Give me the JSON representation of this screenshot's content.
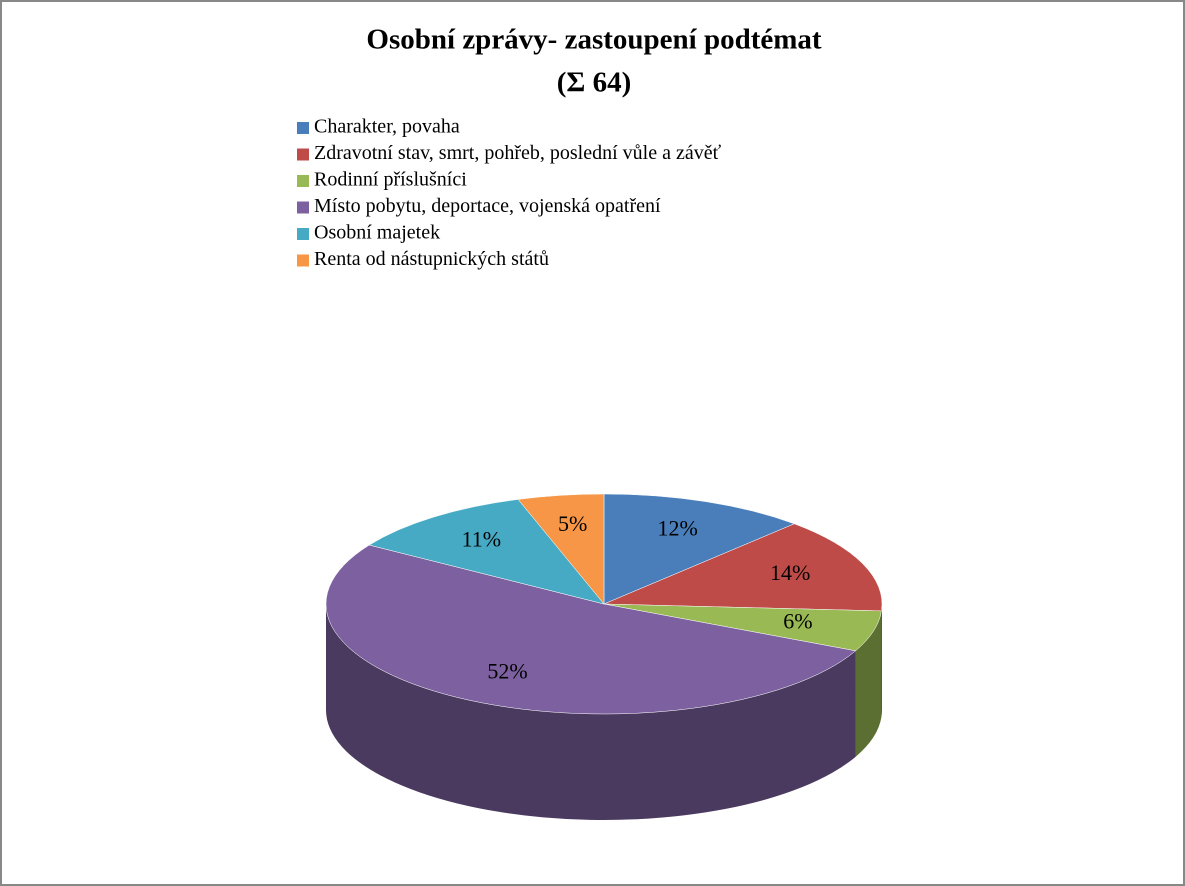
{
  "chart_data": {
    "type": "pie",
    "title": "Osobní zprávy- zastoupení podtémat",
    "subtitle": "(Σ 64)",
    "categories": [
      "Charakter, povaha",
      "Zdravotní stav, smrt, pohřeb, poslední vůle a závěť",
      "Rodinní příslušníci",
      "Místo pobytu, deportace, vojenská opatření",
      "Osobní majetek",
      "Renta od nástupnických států"
    ],
    "values": [
      12,
      14,
      6,
      52,
      11,
      5
    ],
    "value_labels": [
      "12%",
      "14%",
      "6%",
      "52%",
      "11%",
      "5%"
    ],
    "colors": [
      "#4a7ebb",
      "#be4b48",
      "#98b954",
      "#7d60a0",
      "#46aac5",
      "#f79646"
    ],
    "legend": "top"
  }
}
